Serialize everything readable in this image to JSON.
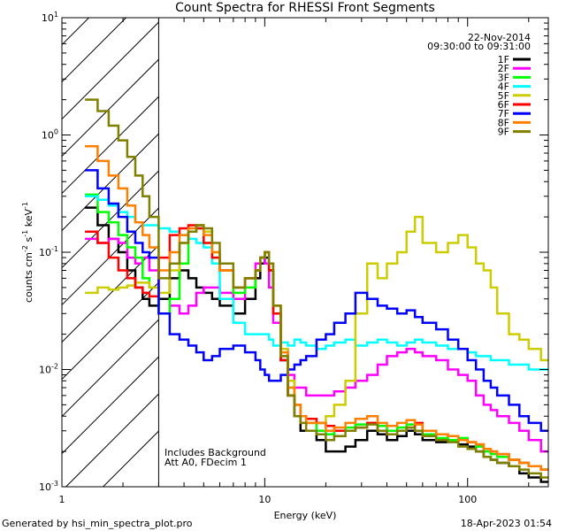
{
  "chart_data": {
    "type": "line",
    "title": "Count Spectra for RHESSI Front Segments",
    "xlabel": "Energy (keV)",
    "ylabel_parts": {
      "a": "counts cm",
      "b": "-2",
      "c": " s",
      "d": "-1",
      "e": " keV",
      "f": "-1"
    },
    "xscale": "log",
    "yscale": "log",
    "xlim": [
      1,
      250
    ],
    "ylim": [
      0.001,
      10
    ],
    "x_ticks": [
      {
        "value": 1,
        "label": "1"
      },
      {
        "value": 10,
        "label": "10"
      },
      {
        "value": 100,
        "label": "100"
      }
    ],
    "y_ticks": [
      {
        "value": 0.001,
        "base": "10",
        "exp": "-3"
      },
      {
        "value": 0.01,
        "base": "10",
        "exp": "-2"
      },
      {
        "value": 0.1,
        "base": "10",
        "exp": "-1"
      },
      {
        "value": 1,
        "base": "10",
        "exp": "0"
      },
      {
        "value": 10,
        "base": "10",
        "exp": "1"
      }
    ],
    "legend": {
      "placement": "top-right",
      "date": "22-Nov-2014",
      "time_range": "09:30:00 to 09:31:00"
    },
    "hatched_region": {
      "x_from": 1,
      "x_to": 3
    },
    "annotations": [
      "Includes Background",
      "Att A0, FDecim 1"
    ],
    "series": [
      {
        "name": "1F",
        "color": "#000000",
        "x": [
          1.3,
          1.5,
          1.7,
          1.9,
          2.1,
          2.3,
          2.5,
          2.7,
          3,
          3.4,
          3.8,
          4.2,
          4.6,
          5,
          5.5,
          6,
          7,
          8,
          9,
          9.5,
          10,
          10.5,
          11,
          12,
          13,
          14,
          15,
          16,
          18,
          20,
          22,
          25,
          28,
          32,
          36,
          40,
          45,
          50,
          55,
          60,
          70,
          80,
          90,
          100,
          110,
          120,
          130,
          140,
          160,
          180,
          200,
          230
        ],
        "values": [
          0.24,
          0.17,
          0.13,
          0.1,
          0.07,
          0.05,
          0.04,
          0.035,
          0.04,
          0.06,
          0.07,
          0.06,
          0.05,
          0.045,
          0.04,
          0.035,
          0.03,
          0.04,
          0.06,
          0.08,
          0.09,
          0.07,
          0.03,
          0.012,
          0.006,
          0.004,
          0.003,
          0.003,
          0.0025,
          0.002,
          0.002,
          0.0022,
          0.0025,
          0.003,
          0.0028,
          0.0025,
          0.0027,
          0.003,
          0.0028,
          0.0025,
          0.0024,
          0.0025,
          0.0023,
          0.0022,
          0.002,
          0.0018,
          0.0017,
          0.0016,
          0.0015,
          0.0013,
          0.0012,
          0.0011
        ]
      },
      {
        "name": "2F",
        "color": "#ff00ff",
        "x": [
          1.3,
          1.5,
          1.7,
          1.9,
          2.1,
          2.3,
          2.5,
          2.7,
          3,
          3.4,
          3.8,
          4.2,
          4.6,
          5,
          5.5,
          6,
          7,
          8,
          9,
          9.5,
          10,
          10.5,
          11,
          12,
          13,
          14,
          15,
          16,
          18,
          20,
          22,
          25,
          28,
          32,
          36,
          40,
          45,
          50,
          55,
          60,
          70,
          80,
          90,
          100,
          110,
          120,
          130,
          140,
          160,
          180,
          200,
          230
        ],
        "values": [
          0.13,
          0.12,
          0.13,
          0.12,
          0.09,
          0.08,
          0.09,
          0.07,
          0.03,
          0.035,
          0.03,
          0.035,
          0.045,
          0.05,
          0.05,
          0.045,
          0.04,
          0.06,
          0.08,
          0.09,
          0.08,
          0.05,
          0.025,
          0.015,
          0.009,
          0.007,
          0.007,
          0.006,
          0.006,
          0.006,
          0.0065,
          0.007,
          0.008,
          0.009,
          0.011,
          0.013,
          0.014,
          0.015,
          0.014,
          0.013,
          0.012,
          0.01,
          0.009,
          0.008,
          0.006,
          0.005,
          0.0045,
          0.004,
          0.0035,
          0.003,
          0.0025,
          0.002
        ]
      },
      {
        "name": "3F",
        "color": "#00ff00",
        "x": [
          1.3,
          1.5,
          1.7,
          1.9,
          2.1,
          2.3,
          2.5,
          2.7,
          3,
          3.4,
          3.8,
          4.2,
          4.6,
          5,
          5.5,
          6,
          7,
          8,
          9,
          9.5,
          10,
          10.5,
          11,
          12,
          13,
          14,
          15,
          16,
          18,
          20,
          22,
          25,
          28,
          32,
          36,
          40,
          45,
          50,
          55,
          60,
          70,
          80,
          90,
          100,
          110,
          120,
          130,
          140,
          160,
          180,
          200,
          230
        ],
        "values": [
          0.31,
          0.22,
          0.18,
          0.14,
          0.11,
          0.09,
          0.06,
          0.05,
          0.03,
          0.04,
          0.08,
          0.15,
          0.16,
          0.12,
          0.09,
          0.07,
          0.045,
          0.05,
          0.07,
          0.09,
          0.1,
          0.07,
          0.03,
          0.013,
          0.007,
          0.005,
          0.004,
          0.0035,
          0.003,
          0.0028,
          0.003,
          0.0032,
          0.0034,
          0.0035,
          0.0033,
          0.003,
          0.0032,
          0.0034,
          0.003,
          0.0028,
          0.0026,
          0.0025,
          0.0026,
          0.0024,
          0.0022,
          0.002,
          0.0019,
          0.0018,
          0.0017,
          0.0016,
          0.0015,
          0.0014
        ]
      },
      {
        "name": "4F",
        "color": "#00ffff",
        "x": [
          1.3,
          1.5,
          1.7,
          1.9,
          2.1,
          2.3,
          2.5,
          2.7,
          3,
          3.4,
          3.8,
          4.2,
          4.6,
          5,
          5.5,
          6,
          7,
          8,
          9,
          9.5,
          10,
          10.5,
          11,
          12,
          13,
          14,
          15,
          16,
          18,
          20,
          22,
          25,
          28,
          32,
          36,
          40,
          45,
          50,
          55,
          60,
          70,
          80,
          90,
          100,
          110,
          120,
          130,
          140,
          160,
          180,
          200,
          230
        ],
        "values": [
          0.3,
          0.28,
          0.25,
          0.22,
          0.2,
          0.18,
          0.17,
          0.17,
          0.16,
          0.15,
          0.14,
          0.13,
          0.12,
          0.11,
          0.08,
          0.04,
          0.025,
          0.02,
          0.02,
          0.02,
          0.02,
          0.018,
          0.016,
          0.017,
          0.016,
          0.018,
          0.017,
          0.016,
          0.015,
          0.016,
          0.017,
          0.018,
          0.016,
          0.017,
          0.018,
          0.017,
          0.016,
          0.017,
          0.018,
          0.017,
          0.016,
          0.015,
          0.015,
          0.014,
          0.013,
          0.013,
          0.012,
          0.012,
          0.011,
          0.011,
          0.01,
          0.01
        ]
      },
      {
        "name": "5F",
        "color": "#cccc00",
        "x": [
          1.3,
          1.5,
          1.7,
          1.9,
          2.1,
          2.3,
          2.5,
          2.7,
          3,
          3.4,
          3.8,
          4.2,
          4.6,
          5,
          5.5,
          6,
          7,
          8,
          9,
          9.5,
          10,
          10.5,
          11,
          12,
          13,
          14,
          15,
          16,
          18,
          20,
          22,
          25,
          28,
          32,
          36,
          40,
          45,
          50,
          55,
          60,
          70,
          80,
          90,
          100,
          110,
          120,
          130,
          140,
          160,
          180,
          200,
          230
        ],
        "values": [
          0.045,
          0.05,
          0.048,
          0.05,
          0.052,
          0.055,
          0.055,
          0.05,
          0.045,
          0.07,
          0.12,
          0.15,
          0.17,
          0.15,
          0.1,
          0.07,
          0.05,
          0.06,
          0.07,
          0.09,
          0.1,
          0.08,
          0.035,
          0.015,
          0.008,
          0.005,
          0.004,
          0.0035,
          0.0035,
          0.004,
          0.005,
          0.008,
          0.03,
          0.08,
          0.06,
          0.08,
          0.1,
          0.15,
          0.2,
          0.12,
          0.1,
          0.12,
          0.14,
          0.11,
          0.08,
          0.07,
          0.05,
          0.03,
          0.02,
          0.018,
          0.015,
          0.012
        ]
      },
      {
        "name": "6F",
        "color": "#ff0000",
        "x": [
          1.3,
          1.5,
          1.7,
          1.9,
          2.1,
          2.3,
          2.5,
          2.7,
          3,
          3.4,
          3.8,
          4.2,
          4.6,
          5,
          5.5,
          6,
          7,
          8,
          9,
          9.5,
          10,
          10.5,
          11,
          12,
          13,
          14,
          15,
          16,
          18,
          20,
          22,
          25,
          28,
          32,
          36,
          40,
          45,
          50,
          55,
          60,
          70,
          80,
          90,
          100,
          110,
          120,
          130,
          140,
          160,
          180,
          200,
          230
        ],
        "values": [
          0.15,
          0.12,
          0.09,
          0.07,
          0.06,
          0.05,
          0.045,
          0.042,
          0.09,
          0.14,
          0.16,
          0.17,
          0.16,
          0.12,
          0.09,
          0.07,
          0.05,
          0.06,
          0.07,
          0.09,
          0.1,
          0.07,
          0.03,
          0.012,
          0.006,
          0.005,
          0.004,
          0.0038,
          0.0035,
          0.0033,
          0.003,
          0.003,
          0.0032,
          0.0035,
          0.003,
          0.0028,
          0.003,
          0.0032,
          0.0035,
          0.003,
          0.0028,
          0.0027,
          0.0025,
          0.0024,
          0.0023,
          0.0021,
          0.002,
          0.0019,
          0.0017,
          0.0016,
          0.0015,
          0.0014
        ]
      },
      {
        "name": "7F",
        "color": "#0000ff",
        "x": [
          1.3,
          1.5,
          1.7,
          1.9,
          2.1,
          2.3,
          2.5,
          2.7,
          3,
          3.4,
          3.8,
          4.2,
          4.6,
          5,
          5.5,
          6,
          7,
          8,
          9,
          9.5,
          10,
          10.5,
          11,
          12,
          13,
          14,
          15,
          16,
          18,
          20,
          22,
          25,
          28,
          32,
          36,
          40,
          45,
          50,
          55,
          60,
          70,
          80,
          90,
          100,
          110,
          120,
          130,
          140,
          160,
          180,
          200,
          230
        ],
        "values": [
          0.5,
          0.35,
          0.26,
          0.2,
          0.15,
          0.12,
          0.1,
          0.09,
          0.03,
          0.02,
          0.018,
          0.016,
          0.014,
          0.012,
          0.013,
          0.015,
          0.016,
          0.014,
          0.012,
          0.01,
          0.009,
          0.008,
          0.008,
          0.009,
          0.01,
          0.011,
          0.012,
          0.013,
          0.018,
          0.02,
          0.025,
          0.03,
          0.045,
          0.04,
          0.035,
          0.033,
          0.03,
          0.032,
          0.028,
          0.025,
          0.022,
          0.018,
          0.015,
          0.012,
          0.01,
          0.008,
          0.007,
          0.006,
          0.005,
          0.004,
          0.0035,
          0.003
        ]
      },
      {
        "name": "8F",
        "color": "#ff8000",
        "x": [
          1.3,
          1.5,
          1.7,
          1.9,
          2.1,
          2.3,
          2.5,
          2.7,
          3,
          3.4,
          3.8,
          4.2,
          4.6,
          5,
          5.5,
          6,
          7,
          8,
          9,
          9.5,
          10,
          10.5,
          11,
          12,
          13,
          14,
          15,
          16,
          18,
          20,
          22,
          25,
          28,
          32,
          36,
          40,
          45,
          50,
          55,
          60,
          70,
          80,
          90,
          100,
          110,
          120,
          130,
          140,
          160,
          180,
          200,
          230
        ],
        "values": [
          0.8,
          0.6,
          0.45,
          0.35,
          0.25,
          0.18,
          0.14,
          0.11,
          0.07,
          0.1,
          0.14,
          0.16,
          0.17,
          0.14,
          0.1,
          0.07,
          0.05,
          0.06,
          0.07,
          0.09,
          0.1,
          0.08,
          0.035,
          0.014,
          0.007,
          0.005,
          0.004,
          0.0035,
          0.0035,
          0.003,
          0.0032,
          0.0035,
          0.0038,
          0.004,
          0.0035,
          0.0033,
          0.0035,
          0.0037,
          0.0034,
          0.003,
          0.0028,
          0.0027,
          0.0025,
          0.0024,
          0.0023,
          0.0021,
          0.002,
          0.0019,
          0.0017,
          0.0016,
          0.0015,
          0.0014
        ]
      },
      {
        "name": "9F",
        "color": "#808000",
        "x": [
          1.3,
          1.5,
          1.7,
          1.9,
          2.1,
          2.3,
          2.5,
          2.7,
          3,
          3.4,
          3.8,
          4.2,
          4.6,
          5,
          5.5,
          6,
          7,
          8,
          9,
          9.5,
          10,
          10.5,
          11,
          12,
          13,
          14,
          15,
          16,
          18,
          20,
          22,
          25,
          28,
          32,
          36,
          40,
          45,
          50,
          55,
          60,
          70,
          80,
          90,
          100,
          110,
          120,
          130,
          140,
          160,
          180,
          200,
          230
        ],
        "values": [
          2,
          1.6,
          1.2,
          0.9,
          0.65,
          0.45,
          0.3,
          0.2,
          0.06,
          0.08,
          0.12,
          0.15,
          0.17,
          0.16,
          0.12,
          0.08,
          0.05,
          0.06,
          0.07,
          0.09,
          0.1,
          0.08,
          0.035,
          0.013,
          0.006,
          0.004,
          0.0035,
          0.003,
          0.0028,
          0.0025,
          0.0027,
          0.003,
          0.0032,
          0.0034,
          0.003,
          0.0028,
          0.003,
          0.0032,
          0.003,
          0.0027,
          0.0025,
          0.0024,
          0.0022,
          0.0021,
          0.002,
          0.0018,
          0.0017,
          0.0016,
          0.0015,
          0.0014,
          0.0013,
          0.0012
        ]
      }
    ]
  },
  "footer": {
    "left": "Generated by hsi_min_spectra_plot.pro",
    "right": "18-Apr-2023 01:54"
  }
}
